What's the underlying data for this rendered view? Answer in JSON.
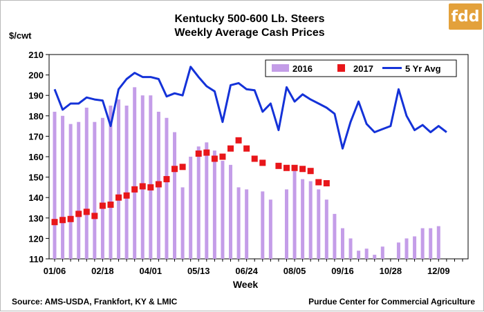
{
  "logo": {
    "text": "fdd",
    "color": "#e3a13b"
  },
  "chart_data": {
    "type": "bar",
    "title": [
      "Kentucky 500-600 Lb. Steers",
      "Weekly Average Cash Prices"
    ],
    "ylabel": "$/cwt",
    "xlabel": "Week",
    "ylim": [
      110,
      210
    ],
    "yticks": [
      110,
      120,
      130,
      140,
      150,
      160,
      170,
      180,
      190,
      200,
      210
    ],
    "x_tick_labels": [
      "01/06",
      "02/18",
      "04/01",
      "05/13",
      "06/24",
      "08/05",
      "09/16",
      "10/28",
      "12/09"
    ],
    "x_tick_weeks": [
      1,
      7,
      13,
      19,
      25,
      31,
      37,
      43,
      49
    ],
    "week_count": 52,
    "grid": false,
    "legend_position": "top-right",
    "series": [
      {
        "name": "2016",
        "kind": "bar",
        "color": "#c49de8",
        "values": [
          182,
          180,
          176,
          177,
          184,
          177,
          179,
          185,
          188,
          185,
          194,
          190,
          190,
          182,
          179,
          172,
          145,
          160,
          165,
          167,
          163,
          158,
          156,
          145,
          144,
          null,
          143,
          139,
          null,
          144,
          153,
          149,
          148,
          144,
          139,
          132,
          125,
          120,
          114,
          115,
          112,
          116,
          null,
          118,
          120,
          121,
          125,
          125,
          126,
          null,
          null,
          null
        ]
      },
      {
        "name": "2017",
        "kind": "scatter",
        "color": "#e8161a",
        "values": [
          128,
          129,
          129.5,
          132,
          133,
          131,
          136,
          136.5,
          140,
          141,
          144,
          145.5,
          145,
          146.5,
          149,
          154,
          155,
          null,
          161.5,
          162,
          159,
          160,
          164,
          168,
          164,
          159,
          157,
          null,
          155.5,
          154.5,
          154.5,
          154,
          153,
          147.5,
          147,
          null,
          null,
          null,
          null,
          null,
          null,
          null,
          null,
          null,
          null,
          null,
          null,
          null,
          null,
          null,
          null,
          null
        ]
      },
      {
        "name": "5 Yr Avg",
        "kind": "line",
        "color": "#1432d8",
        "values": [
          193,
          183,
          186,
          186,
          189,
          188,
          187.5,
          175,
          193,
          198,
          201,
          199,
          199,
          198,
          189.5,
          191,
          190,
          204,
          199,
          194.5,
          192,
          177,
          195,
          196,
          193,
          192.5,
          182,
          186,
          173,
          194,
          187,
          190.5,
          188,
          186,
          184,
          181,
          164,
          177,
          187,
          176,
          172,
          173.5,
          175,
          193,
          180,
          173,
          175.5,
          172,
          175,
          172,
          null,
          null
        ]
      }
    ]
  },
  "footer": {
    "source": "Source:  AMS-USDA,  Frankfort, KY & LMIC",
    "credit": "Purdue Center for Commercial Agriculture"
  }
}
